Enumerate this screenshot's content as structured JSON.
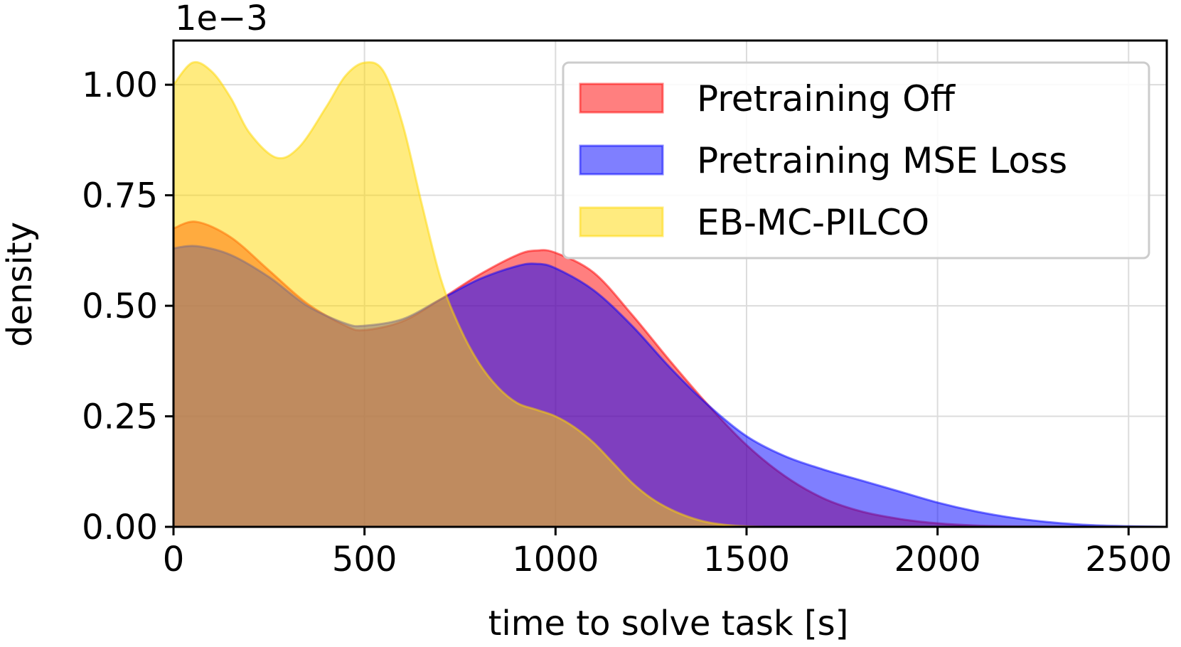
{
  "chart_data": {
    "type": "area",
    "title": "",
    "xlabel": "time to solve task [s]",
    "ylabel": "density",
    "y_offset_text": "1e−3",
    "xlim": [
      0,
      2600
    ],
    "ylim": [
      0,
      1.1
    ],
    "xticks": [
      0,
      500,
      1000,
      1500,
      2000,
      2500
    ],
    "xtick_labels": [
      "0",
      "500",
      "1000",
      "1500",
      "2000",
      "2500"
    ],
    "yticks": [
      0,
      0.25,
      0.5,
      0.75,
      1.0
    ],
    "ytick_labels": [
      "0.00",
      "0.25",
      "0.50",
      "0.75",
      "1.00"
    ],
    "grid": true,
    "legend_position": "top-right",
    "series": [
      {
        "name": "Pretraining Off",
        "color": "#ff0000",
        "alpha": 0.5,
        "points": [
          [
            0,
            0.675
          ],
          [
            60,
            0.69
          ],
          [
            150,
            0.655
          ],
          [
            250,
            0.58
          ],
          [
            350,
            0.505
          ],
          [
            450,
            0.455
          ],
          [
            500,
            0.445
          ],
          [
            600,
            0.465
          ],
          [
            700,
            0.515
          ],
          [
            800,
            0.57
          ],
          [
            900,
            0.615
          ],
          [
            950,
            0.625
          ],
          [
            1000,
            0.62
          ],
          [
            1100,
            0.575
          ],
          [
            1200,
            0.48
          ],
          [
            1300,
            0.375
          ],
          [
            1400,
            0.275
          ],
          [
            1500,
            0.185
          ],
          [
            1600,
            0.115
          ],
          [
            1700,
            0.065
          ],
          [
            1800,
            0.035
          ],
          [
            1900,
            0.018
          ],
          [
            2000,
            0.008
          ],
          [
            2100,
            0.003
          ],
          [
            2200,
            0.001
          ],
          [
            2300,
            0.0005
          ],
          [
            2400,
            0.0002
          ],
          [
            2600,
            0.0
          ]
        ]
      },
      {
        "name": "Pretraining MSE Loss",
        "color": "#0000ff",
        "alpha": 0.5,
        "points": [
          [
            0,
            0.63
          ],
          [
            60,
            0.635
          ],
          [
            150,
            0.615
          ],
          [
            250,
            0.565
          ],
          [
            350,
            0.5
          ],
          [
            450,
            0.46
          ],
          [
            500,
            0.455
          ],
          [
            600,
            0.47
          ],
          [
            700,
            0.515
          ],
          [
            800,
            0.56
          ],
          [
            900,
            0.59
          ],
          [
            950,
            0.595
          ],
          [
            1000,
            0.585
          ],
          [
            1100,
            0.535
          ],
          [
            1200,
            0.455
          ],
          [
            1300,
            0.36
          ],
          [
            1400,
            0.275
          ],
          [
            1500,
            0.205
          ],
          [
            1600,
            0.16
          ],
          [
            1700,
            0.13
          ],
          [
            1800,
            0.105
          ],
          [
            1900,
            0.08
          ],
          [
            2000,
            0.055
          ],
          [
            2100,
            0.035
          ],
          [
            2200,
            0.02
          ],
          [
            2300,
            0.01
          ],
          [
            2400,
            0.004
          ],
          [
            2500,
            0.0015
          ],
          [
            2600,
            0.0
          ]
        ]
      },
      {
        "name": "EB-MC-PILCO",
        "color": "#ffd700",
        "alpha": 0.5,
        "points": [
          [
            0,
            1.0
          ],
          [
            50,
            1.05
          ],
          [
            100,
            1.03
          ],
          [
            150,
            0.97
          ],
          [
            200,
            0.89
          ],
          [
            270,
            0.835
          ],
          [
            330,
            0.86
          ],
          [
            400,
            0.95
          ],
          [
            450,
            1.02
          ],
          [
            500,
            1.05
          ],
          [
            550,
            1.03
          ],
          [
            600,
            0.91
          ],
          [
            650,
            0.73
          ],
          [
            700,
            0.56
          ],
          [
            750,
            0.45
          ],
          [
            800,
            0.37
          ],
          [
            850,
            0.315
          ],
          [
            900,
            0.28
          ],
          [
            950,
            0.265
          ],
          [
            1000,
            0.25
          ],
          [
            1050,
            0.225
          ],
          [
            1100,
            0.19
          ],
          [
            1150,
            0.145
          ],
          [
            1200,
            0.1
          ],
          [
            1250,
            0.065
          ],
          [
            1300,
            0.04
          ],
          [
            1350,
            0.022
          ],
          [
            1400,
            0.01
          ],
          [
            1450,
            0.004
          ],
          [
            1500,
            0.001
          ],
          [
            1550,
            0.0
          ]
        ]
      }
    ]
  }
}
